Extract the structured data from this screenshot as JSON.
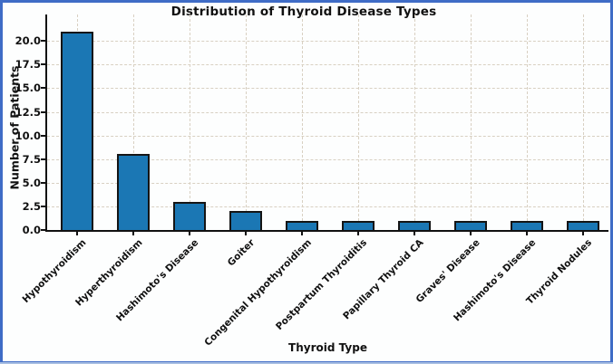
{
  "chart_data": {
    "type": "bar",
    "title": "Distribution of Thyroid Disease Types",
    "xlabel": "Thyroid Type",
    "ylabel": "Number of Patients",
    "categories": [
      "Hypothyroidism",
      "Hyperthyroidism",
      "Hashimoto's Disease",
      "Goiter",
      "Congenital Hypothyroidism",
      "Postpartum Thyroiditis",
      "Papillary Thyroid CA",
      "Graves' Disease",
      "Hashimoto's Disease",
      "Thyroid Nodules"
    ],
    "values": [
      21,
      8,
      3,
      2,
      1,
      1,
      1,
      1,
      1,
      1
    ],
    "yticks": [
      0.0,
      2.5,
      5.0,
      7.5,
      10.0,
      12.5,
      15.0,
      17.5,
      20.0
    ],
    "ytick_labels": [
      "0.0",
      "2.5",
      "5.0",
      "7.5",
      "10.0",
      "12.5",
      "15.0",
      "17.5",
      "20.0"
    ],
    "ylim": [
      0,
      22.8
    ],
    "grid": "both, dashed",
    "legend": "none",
    "bar_color": "#1b77b4",
    "bar_edge_color": "#151515",
    "grid_color": "#d8d0c2",
    "frame_border_color": "#3f6cc6"
  }
}
